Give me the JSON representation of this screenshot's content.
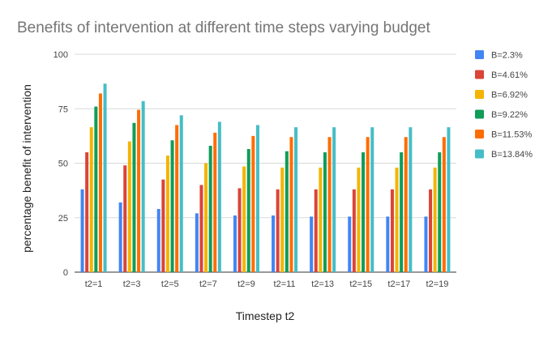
{
  "chart_data": {
    "type": "bar",
    "title": "Benefits of intervention at different time steps varying budget",
    "xlabel": "Timestep t2",
    "ylabel": "percentage benefit of intervention",
    "ylim": [
      0,
      100
    ],
    "yticks": [
      0,
      25,
      50,
      75,
      100
    ],
    "grid": true,
    "legend_position": "right",
    "categories": [
      "t2=1",
      "t2=3",
      "t2=5",
      "t2=7",
      "t2=9",
      "t2=11",
      "t2=13",
      "t2=15",
      "t2=17",
      "t2=19"
    ],
    "series": [
      {
        "name": "B=2.3%",
        "color": "#4285F4",
        "values": [
          38,
          32,
          29,
          27,
          26,
          26,
          25.5,
          25.5,
          25.5,
          25.5
        ]
      },
      {
        "name": "B=4.61%",
        "color": "#DB4437",
        "values": [
          55,
          49,
          42.5,
          40,
          38.5,
          38,
          38,
          38,
          38,
          38
        ]
      },
      {
        "name": "B=6.92%",
        "color": "#F4B400",
        "values": [
          66.5,
          60,
          53.5,
          50,
          48.5,
          48,
          48,
          48,
          48,
          48
        ]
      },
      {
        "name": "B=9.22%",
        "color": "#0F9D58",
        "values": [
          76,
          68.5,
          60.5,
          58,
          56.5,
          55.5,
          55,
          55,
          55,
          55
        ]
      },
      {
        "name": "B=11.53%",
        "color": "#FF6D00",
        "values": [
          82,
          74.5,
          67.5,
          64,
          62.5,
          62,
          62,
          62,
          62,
          62
        ]
      },
      {
        "name": "B=13.84%",
        "color": "#46BDC6",
        "values": [
          86.5,
          78.5,
          72,
          69,
          67.5,
          66.5,
          66.5,
          66.5,
          66.5,
          66.5
        ]
      }
    ]
  }
}
